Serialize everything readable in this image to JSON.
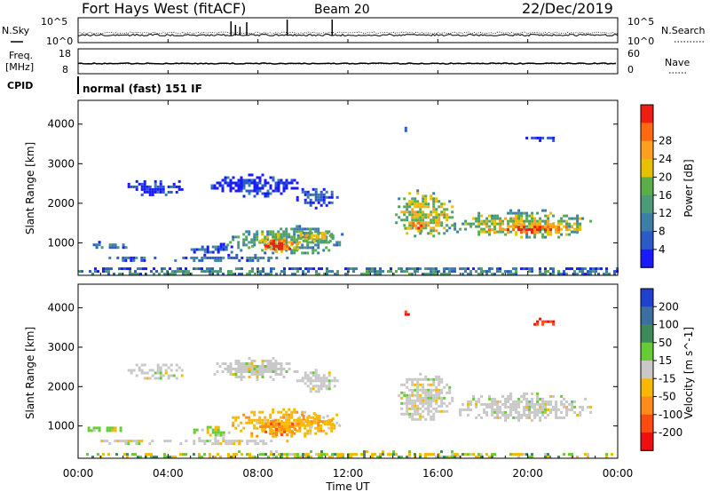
{
  "header": {
    "title": "Fort Hays West (fitACF)",
    "beam": "Beam 20",
    "date": "22/Dec/2019"
  },
  "status_panel": {
    "left_label_1": "N.Sky",
    "left_ticks_1": [
      "10^5",
      "10^0"
    ],
    "right_label_1": "N.Search",
    "right_ticks_1": [
      "10^5",
      "10^0"
    ],
    "left_label_2_line1": "Freq.",
    "left_label_2_line2": "[MHz]",
    "left_ticks_2": [
      "18",
      "8"
    ],
    "right_label_2": "Nave",
    "right_ticks_2": [
      "60",
      "0"
    ],
    "cpid_label": "CPID",
    "cpid_text": "normal (fast) 151 IF"
  },
  "chart_data": [
    {
      "type": "heatmap",
      "quantity": "Power",
      "ylabel": "Slant Range [km]",
      "colorbar_label": "Power [dB]",
      "ylim": [
        180,
        4600
      ],
      "yticks": [
        1000,
        2000,
        3000,
        4000
      ],
      "xlim_hours": [
        0,
        24
      ],
      "colorbar": {
        "ticks": [
          "4",
          "8",
          "12",
          "16",
          "20",
          "24",
          "28"
        ],
        "colors": [
          "#1a1aff",
          "#2a5bc8",
          "#3c7ea8",
          "#4c9a78",
          "#5aae4a",
          "#e8c000",
          "#ffa020",
          "#ff6a10",
          "#ef1e10"
        ]
      },
      "regions": [
        {
          "t": [
            0.3,
            2.2
          ],
          "r": [
            850,
            1050
          ],
          "level": 0.25
        },
        {
          "t": [
            1.0,
            3.6
          ],
          "r": [
            560,
            720
          ],
          "level": 0.2
        },
        {
          "t": [
            3.8,
            9.5
          ],
          "r": [
            560,
            720
          ],
          "level": 0.25
        },
        {
          "t": [
            5.0,
            7.0
          ],
          "r": [
            750,
            1000
          ],
          "level": 0.2
        },
        {
          "t": [
            6.6,
            11.8
          ],
          "r": [
            750,
            1450
          ],
          "level": 0.45
        },
        {
          "t": [
            7.7,
            10.0
          ],
          "r": [
            800,
            1150
          ],
          "level": 0.92
        },
        {
          "t": [
            9.5,
            11.5
          ],
          "r": [
            1000,
            1350
          ],
          "level": 0.55
        },
        {
          "t": [
            14.1,
            16.7
          ],
          "r": [
            1150,
            2350
          ],
          "level": 0.6
        },
        {
          "t": [
            14.5,
            15.5
          ],
          "r": [
            1300,
            1600
          ],
          "level": 0.85
        },
        {
          "t": [
            16.7,
            22.8
          ],
          "r": [
            1150,
            1850
          ],
          "level": 0.55
        },
        {
          "t": [
            18.0,
            22.5
          ],
          "r": [
            1250,
            1500
          ],
          "level": 0.85
        },
        {
          "t": [
            2.2,
            4.7
          ],
          "r": [
            2200,
            2650
          ],
          "level": 0.1
        },
        {
          "t": [
            5.9,
            9.8
          ],
          "r": [
            2200,
            2750
          ],
          "level": 0.1
        },
        {
          "t": [
            9.7,
            11.6
          ],
          "r": [
            1900,
            2450
          ],
          "level": 0.15
        },
        {
          "t": [
            14.4,
            14.7
          ],
          "r": [
            3800,
            4000
          ],
          "level": 0.15
        },
        {
          "t": [
            19.9,
            21.3
          ],
          "r": [
            3550,
            3750
          ],
          "level": 0.05
        },
        {
          "t": [
            0.0,
            24.0
          ],
          "r": [
            200,
            380
          ],
          "level": 0.35
        }
      ]
    },
    {
      "type": "heatmap",
      "quantity": "Velocity",
      "ylabel": "Slant Range [km]",
      "colorbar_label": "Velocity [m s^-1]",
      "ylim": [
        180,
        4600
      ],
      "yticks": [
        1000,
        2000,
        3000,
        4000
      ],
      "xlim_hours": [
        0,
        24
      ],
      "colorbar": {
        "ticks": [
          "200",
          "100",
          "50",
          "15",
          "-15",
          "-50",
          "-100",
          "-200"
        ],
        "colors": [
          "#2040d0",
          "#3c6fa0",
          "#3c8a5a",
          "#66cc33",
          "#c8c8c8",
          "#f8b800",
          "#ff8c1a",
          "#ff4a10",
          "#ee1010"
        ]
      },
      "regions": [
        {
          "t": [
            0.3,
            2.2
          ],
          "r": [
            850,
            1050
          ],
          "class": "green"
        },
        {
          "t": [
            1.0,
            3.6
          ],
          "r": [
            560,
            720
          ],
          "class": "mixed"
        },
        {
          "t": [
            3.8,
            9.5
          ],
          "r": [
            560,
            720
          ],
          "class": "grey"
        },
        {
          "t": [
            5.0,
            7.0
          ],
          "r": [
            750,
            1000
          ],
          "class": "green"
        },
        {
          "t": [
            6.6,
            11.8
          ],
          "r": [
            750,
            1450
          ],
          "class": "orange"
        },
        {
          "t": [
            7.7,
            10.0
          ],
          "r": [
            800,
            1150
          ],
          "class": "deep-orange"
        },
        {
          "t": [
            9.5,
            11.5
          ],
          "r": [
            1000,
            1350
          ],
          "class": "orange"
        },
        {
          "t": [
            14.1,
            16.7
          ],
          "r": [
            1150,
            2350
          ],
          "class": "grey"
        },
        {
          "t": [
            16.7,
            22.8
          ],
          "r": [
            1150,
            1850
          ],
          "class": "grey"
        },
        {
          "t": [
            2.2,
            4.7
          ],
          "r": [
            2200,
            2650
          ],
          "class": "grey"
        },
        {
          "t": [
            5.9,
            9.8
          ],
          "r": [
            2200,
            2750
          ],
          "class": "grey"
        },
        {
          "t": [
            9.7,
            11.6
          ],
          "r": [
            1900,
            2450
          ],
          "class": "grey"
        },
        {
          "t": [
            14.4,
            14.7
          ],
          "r": [
            3800,
            4000
          ],
          "class": "red"
        },
        {
          "t": [
            19.9,
            21.3
          ],
          "r": [
            3550,
            3750
          ],
          "class": "red"
        },
        {
          "t": [
            0.0,
            24.0
          ],
          "r": [
            200,
            380
          ],
          "class": "ground"
        }
      ]
    }
  ],
  "x_axis": {
    "ticks": [
      "00:00",
      "04:00",
      "08:00",
      "12:00",
      "16:00",
      "20:00",
      "00:00"
    ],
    "label": "Time UT"
  }
}
